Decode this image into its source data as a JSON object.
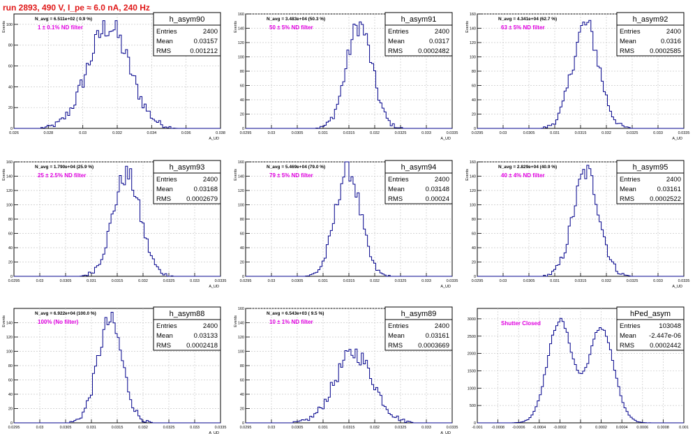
{
  "header": {
    "run_title": "run 2893,   490 V, I_pe ≈ 6.0 nA, 240 Hz"
  },
  "colors": {
    "hist": "#00008b",
    "filter_label": "#e000e0",
    "run_title": "#e01818",
    "grid": "#c8c8c8"
  },
  "chart_data": [
    {
      "type": "bar",
      "name": "h_asym90",
      "entries": "2400",
      "mean": "0.03157",
      "rms": "0.001212",
      "navg": "N_avg = 6.511e+02 ( 0.9 %)",
      "filter": "1 ± 0.1% ND filter",
      "ylabel": "Events",
      "xlabel": "A_UD",
      "xlim": [
        0.026,
        0.038
      ],
      "ylim": [
        0,
        110
      ],
      "x_ticks": [
        "0.026",
        "0.028",
        "0.03",
        "0.032",
        "0.034",
        "0.036",
        "0.038"
      ],
      "y_ticks": [
        "0",
        "20",
        "40",
        "60",
        "80",
        "100"
      ],
      "peak": 0.0315,
      "sigma": 0.00121,
      "amp": 98
    },
    {
      "type": "bar",
      "name": "h_asym91",
      "entries": "2400",
      "mean": "0.0317",
      "rms": "0.0002482",
      "navg": "N_avg = 3.483e+04 (50.3 %)",
      "filter": "50 ± 5% ND filter",
      "ylabel": "Events",
      "xlabel": "A_UD",
      "xlim": [
        0.0295,
        0.0335
      ],
      "ylim": [
        0,
        160
      ],
      "x_ticks": [
        "0.0295",
        "0.03",
        "0.0305",
        "0.031",
        "0.0315",
        "0.032",
        "0.0325",
        "0.033",
        "0.0335"
      ],
      "y_ticks": [
        "0",
        "20",
        "40",
        "60",
        "80",
        "100",
        "120",
        "140",
        "160"
      ],
      "peak": 0.0317,
      "sigma": 0.000248,
      "amp": 145
    },
    {
      "type": "bar",
      "name": "h_asym92",
      "entries": "2400",
      "mean": "0.0316",
      "rms": "0.0002585",
      "navg": "N_avg = 4.341e+04 (62.7 %)",
      "filter": "63 ± 5% ND filter",
      "ylabel": "Events",
      "xlabel": "A_UD",
      "xlim": [
        0.0295,
        0.0335
      ],
      "ylim": [
        0,
        160
      ],
      "x_ticks": [
        "0.0295",
        "0.03",
        "0.0305",
        "0.031",
        "0.0315",
        "0.032",
        "0.0325",
        "0.033",
        "0.0335"
      ],
      "y_ticks": [
        "0",
        "20",
        "40",
        "60",
        "80",
        "100",
        "120",
        "140",
        "160"
      ],
      "peak": 0.0316,
      "sigma": 0.000258,
      "amp": 145
    },
    {
      "type": "bar",
      "name": "h_asym93",
      "entries": "2400",
      "mean": "0.03168",
      "rms": "0.0002679",
      "navg": "N_avg = 1.790e+04 (25.9 %)",
      "filter": "25 ± 2.5% ND filter",
      "ylabel": "Events",
      "xlabel": "A_UD",
      "xlim": [
        0.0295,
        0.0335
      ],
      "ylim": [
        0,
        160
      ],
      "x_ticks": [
        "0.0295",
        "0.03",
        "0.0305",
        "0.031",
        "0.0315",
        "0.032",
        "0.0325",
        "0.033",
        "0.0335"
      ],
      "y_ticks": [
        "0",
        "20",
        "40",
        "60",
        "80",
        "100",
        "120",
        "140",
        "160"
      ],
      "peak": 0.03168,
      "sigma": 0.000268,
      "amp": 142
    },
    {
      "type": "bar",
      "name": "h_asym94",
      "entries": "2400",
      "mean": "0.03148",
      "rms": "0.00024",
      "navg": "N_avg = 5.469e+04 (79.0 %)",
      "filter": "79 ± 5% ND filter",
      "ylabel": "Events",
      "xlabel": "A_UD",
      "xlim": [
        0.0295,
        0.0335
      ],
      "ylim": [
        0,
        160
      ],
      "x_ticks": [
        "0.0295",
        "0.03",
        "0.0305",
        "0.031",
        "0.0315",
        "0.032",
        "0.0325",
        "0.033",
        "0.0335"
      ],
      "y_ticks": [
        "0",
        "20",
        "40",
        "60",
        "80",
        "100",
        "120",
        "140",
        "160"
      ],
      "peak": 0.03148,
      "sigma": 0.00024,
      "amp": 150
    },
    {
      "type": "bar",
      "name": "h_asym95",
      "entries": "2400",
      "mean": "0.03161",
      "rms": "0.0002522",
      "navg": "N_avg = 2.829e+04 (40.9 %)",
      "filter": "40 ± 4% ND filter",
      "ylabel": "Events",
      "xlabel": "A_UD",
      "xlim": [
        0.0295,
        0.0335
      ],
      "ylim": [
        0,
        160
      ],
      "x_ticks": [
        "0.0295",
        "0.03",
        "0.0305",
        "0.031",
        "0.0315",
        "0.032",
        "0.0325",
        "0.033",
        "0.0335"
      ],
      "y_ticks": [
        "0",
        "20",
        "40",
        "60",
        "80",
        "100",
        "120",
        "140",
        "160"
      ],
      "peak": 0.03161,
      "sigma": 0.000252,
      "amp": 146
    },
    {
      "type": "bar",
      "name": "h_asym88",
      "entries": "2400",
      "mean": "0.03133",
      "rms": "0.0002418",
      "navg": "N_avg = 6.922e+04 (100.0 %)",
      "filter": "100% (No filter)",
      "ylabel": "Events",
      "xlabel": "A_UD",
      "xlim": [
        0.0295,
        0.0335
      ],
      "ylim": [
        0,
        160
      ],
      "x_ticks": [
        "0.0295",
        "0.03",
        "0.0305",
        "0.031",
        "0.0315",
        "0.032",
        "0.0325",
        "0.033",
        "0.0335"
      ],
      "y_ticks": [
        "0",
        "20",
        "40",
        "60",
        "80",
        "100",
        "120",
        "140"
      ],
      "peak": 0.03136,
      "sigma": 0.000242,
      "amp": 142
    },
    {
      "type": "bar",
      "name": "h_asym89",
      "entries": "2400",
      "mean": "0.03161",
      "rms": "0.0003669",
      "navg": "N_avg = 6.543e+03 ( 9.5 %)",
      "filter": "10 ± 1% ND filter",
      "ylabel": "Events",
      "xlabel": "A_UD",
      "xlim": [
        0.0295,
        0.0335
      ],
      "ylim": [
        0,
        160
      ],
      "x_ticks": [
        "0.0295",
        "0.03",
        "0.0305",
        "0.031",
        "0.0315",
        "0.032",
        "0.0325",
        "0.033",
        "0.0335"
      ],
      "y_ticks": [
        "0",
        "20",
        "40",
        "60",
        "80",
        "100",
        "120",
        "140",
        "160"
      ],
      "peak": 0.0316,
      "sigma": 0.000367,
      "amp": 98
    },
    {
      "type": "bar",
      "name": "hPed_asym",
      "entries": "103048",
      "mean": "-2.447e-06",
      "rms": "0.0002442",
      "navg": "",
      "filter": "Shutter Closed",
      "ylabel": "",
      "xlabel": "",
      "xlim": [
        -0.001,
        0.001
      ],
      "ylim": [
        0,
        3300
      ],
      "x_ticks": [
        "-0.001",
        "-0.0008",
        "-0.0006",
        "-0.0004",
        "-0.0002",
        "0",
        "0.0002",
        "0.0004",
        "0.0006",
        "0.0008",
        "0.001"
      ],
      "y_ticks": [
        "0",
        "500",
        "1000",
        "1500",
        "2000",
        "2500",
        "3000"
      ],
      "bimodal": true,
      "peaks": [
        -0.0002,
        0.0002
      ],
      "sigma": 0.00012,
      "amp": 2950
    }
  ]
}
